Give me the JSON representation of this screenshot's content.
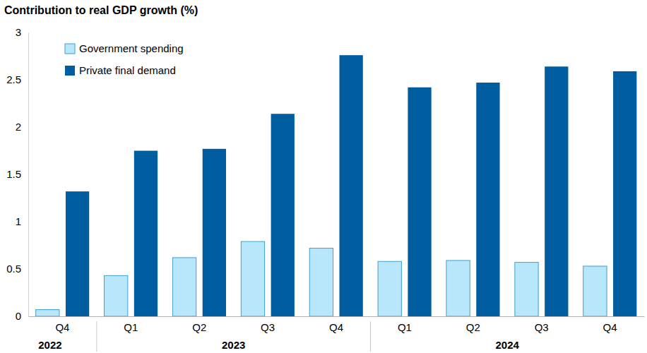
{
  "chart_data": {
    "type": "bar",
    "title": "Contribution to real GDP growth (%)",
    "categories": [
      "Q4",
      "Q1",
      "Q2",
      "Q3",
      "Q4",
      "Q1",
      "Q2",
      "Q3",
      "Q4"
    ],
    "years": [
      "2022",
      "2023",
      "2023",
      "2023",
      "2023",
      "2024",
      "2024",
      "2024",
      "2024"
    ],
    "series": [
      {
        "name": "Government spending",
        "color": "#b8e6fa",
        "values": [
          0.07,
          0.43,
          0.62,
          0.79,
          0.72,
          0.58,
          0.59,
          0.57,
          0.53
        ]
      },
      {
        "name": "Private final demand",
        "color": "#005da0",
        "values": [
          1.32,
          1.75,
          1.77,
          2.14,
          2.76,
          2.42,
          2.47,
          2.64,
          2.59
        ]
      }
    ],
    "ylim": [
      0,
      3
    ],
    "yticks": [
      0,
      0.5,
      1,
      1.5,
      2,
      2.5,
      3
    ],
    "grid": false,
    "legend": "upper left"
  }
}
